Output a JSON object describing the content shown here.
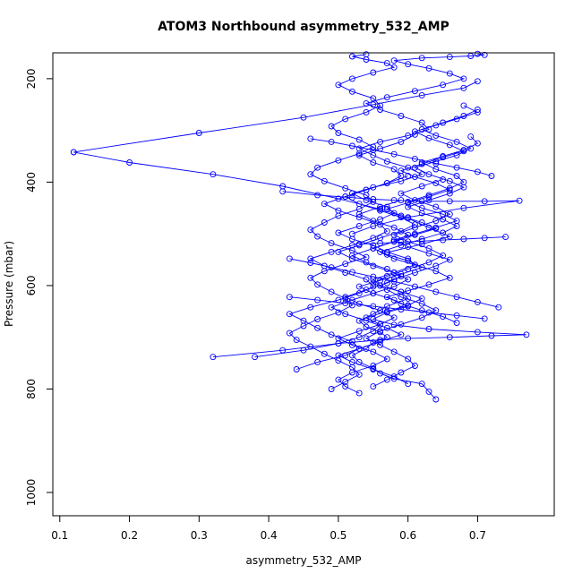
{
  "chart_data": {
    "type": "line",
    "title": "ATOM3 Northbound asymmetry_532_AMP",
    "xlabel": "asymmetry_532_AMP",
    "ylabel": "Pressure (mbar)",
    "xlim": [
      0.09,
      0.81
    ],
    "ylim": [
      1045,
      150
    ],
    "y_inverted": true,
    "grid": false,
    "legend": "none",
    "marker": "open-circle",
    "color": "#0000ff",
    "x_ticks": [
      0.1,
      0.2,
      0.3,
      0.4,
      0.5,
      0.6,
      0.7
    ],
    "x_tick_labels": [
      "0.1",
      "0.2",
      "0.3",
      "0.4",
      "0.5",
      "0.6",
      "0.7"
    ],
    "y_ticks": [
      200,
      400,
      600,
      800,
      1000
    ],
    "y_tick_labels": [
      "200",
      "400",
      "600",
      "800",
      "1000"
    ],
    "series": [
      {
        "x": [
          0.64,
          0.63,
          0.62,
          0.58,
          0.56,
          0.55,
          0.53,
          0.52,
          0.54,
          0.55,
          0.57,
          0.56,
          0.54,
          0.53,
          0.55,
          0.57,
          0.6,
          0.59,
          0.56,
          0.55,
          0.58,
          0.61,
          0.6,
          0.57,
          0.55,
          0.52,
          0.5,
          0.53,
          0.56,
          0.58,
          0.57,
          0.54,
          0.52,
          0.55,
          0.59,
          0.62,
          0.6,
          0.57,
          0.55,
          0.53,
          0.56,
          0.6,
          0.63,
          0.62,
          0.59,
          0.56,
          0.54,
          0.57,
          0.61,
          0.65,
          0.68,
          0.66,
          0.63,
          0.6,
          0.58,
          0.62,
          0.66,
          0.69,
          0.71,
          0.7
        ],
        "y": [
          820,
          805,
          790,
          780,
          770,
          760,
          748,
          735,
          722,
          710,
          700,
          690,
          680,
          668,
          655,
          640,
          625,
          612,
          600,
          588,
          575,
          560,
          548,
          535,
          522,
          510,
          498,
          485,
          472,
          460,
          448,
          435,
          422,
          410,
          398,
          385,
          372,
          360,
          348,
          335,
          322,
          310,
          298,
          285,
          272,
          260,
          248,
          236,
          224,
          212,
          200,
          190,
          180,
          172,
          165,
          160,
          158,
          156,
          154,
          152
        ]
      },
      {
        "x": [
          0.49,
          0.51,
          0.53,
          0.52,
          0.5,
          0.48,
          0.46,
          0.44,
          0.43,
          0.45,
          0.47,
          0.5,
          0.52,
          0.51,
          0.49,
          0.47,
          0.46,
          0.48,
          0.51,
          0.54,
          0.52,
          0.49,
          0.47,
          0.46,
          0.48,
          0.5,
          0.53,
          0.55,
          0.54,
          0.51,
          0.48,
          0.46,
          0.47,
          0.5,
          0.53,
          0.55,
          0.53,
          0.5,
          0.49,
          0.51,
          0.54,
          0.56,
          0.55,
          0.52,
          0.5,
          0.52,
          0.55,
          0.58,
          0.57,
          0.54,
          0.52,
          0.54
        ],
        "y": [
          800,
          786,
          772,
          758,
          745,
          732,
          718,
          705,
          692,
          678,
          665,
          652,
          638,
          625,
          612,
          598,
          585,
          572,
          558,
          545,
          532,
          518,
          505,
          492,
          478,
          465,
          452,
          438,
          425,
          412,
          398,
          385,
          372,
          358,
          345,
          332,
          318,
          305,
          292,
          278,
          265,
          252,
          238,
          225,
          212,
          200,
          188,
          178,
          170,
          163,
          157,
          153
        ]
      },
      {
        "x": [
          0.38,
          0.45,
          0.5,
          0.53,
          0.55,
          0.56,
          0.54,
          0.57,
          0.6,
          0.62,
          0.59,
          0.56,
          0.58,
          0.61,
          0.64,
          0.66,
          0.63,
          0.6,
          0.58,
          0.61,
          0.64,
          0.67,
          0.65,
          0.62,
          0.6,
          0.63,
          0.66,
          0.68,
          0.67,
          0.64,
          0.62,
          0.65,
          0.68,
          0.7,
          0.69
        ],
        "y": [
          738,
          725,
          712,
          700,
          688,
          675,
          662,
          650,
          638,
          625,
          612,
          600,
          588,
          575,
          562,
          550,
          538,
          525,
          512,
          500,
          488,
          475,
          462,
          450,
          438,
          425,
          412,
          400,
          388,
          375,
          362,
          350,
          338,
          325,
          312
        ]
      },
      {
        "x": [
          0.32,
          0.42,
          0.5,
          0.56,
          0.6,
          0.66,
          0.72,
          0.77,
          0.7,
          0.63,
          0.58,
          0.55,
          0.57,
          0.6,
          0.58,
          0.55,
          0.53,
          0.56,
          0.59,
          0.62,
          0.6,
          0.57,
          0.55,
          0.58,
          0.61,
          0.64,
          0.62,
          0.59,
          0.57,
          0.6,
          0.63,
          0.66,
          0.64,
          0.61,
          0.59,
          0.62,
          0.65,
          0.68,
          0.66,
          0.63,
          0.61,
          0.64,
          0.67,
          0.7,
          0.68
        ],
        "y": [
          738,
          725,
          712,
          705,
          702,
          700,
          697,
          695,
          690,
          684,
          676,
          665,
          652,
          640,
          628,
          615,
          602,
          590,
          578,
          565,
          552,
          540,
          528,
          515,
          502,
          490,
          478,
          465,
          452,
          440,
          428,
          415,
          402,
          390,
          378,
          365,
          352,
          340,
          328,
          315,
          302,
          290,
          278,
          265,
          252
        ]
      },
      {
        "x": [
          0.12,
          0.3,
          0.45,
          0.55,
          0.62,
          0.68,
          0.7
        ],
        "y": [
          342,
          305,
          275,
          250,
          232,
          218,
          205
        ]
      },
      {
        "x": [
          0.12,
          0.2,
          0.32,
          0.42,
          0.5,
          0.56,
          0.6,
          0.63,
          0.66,
          0.62,
          0.57
        ],
        "y": [
          342,
          362,
          385,
          408,
          432,
          452,
          470,
          488,
          505,
          520,
          536
        ]
      },
      {
        "x": [
          0.42,
          0.47,
          0.52,
          0.55,
          0.58,
          0.62,
          0.66,
          0.71,
          0.76,
          0.68,
          0.6,
          0.55,
          0.52
        ],
        "y": [
          418,
          425,
          430,
          433,
          435,
          437,
          437,
          437,
          436,
          450,
          468,
          485,
          500
        ]
      },
      {
        "x": [
          0.44,
          0.47,
          0.51,
          0.53,
          0.52,
          0.49,
          0.47,
          0.45,
          0.43,
          0.46,
          0.5,
          0.53,
          0.55,
          0.54,
          0.51,
          0.48,
          0.46,
          0.49,
          0.52,
          0.55,
          0.57,
          0.56,
          0.53,
          0.5,
          0.48,
          0.51,
          0.54,
          0.57,
          0.59,
          0.58,
          0.55,
          0.53,
          0.56,
          0.59,
          0.61
        ],
        "y": [
          762,
          748,
          735,
          722,
          708,
          695,
          682,
          668,
          655,
          642,
          628,
          615,
          602,
          588,
          575,
          562,
          548,
          535,
          522,
          508,
          495,
          482,
          468,
          455,
          442,
          428,
          415,
          402,
          388,
          375,
          362,
          348,
          335,
          322,
          308
        ]
      },
      {
        "x": [
          0.55,
          0.57,
          0.59,
          0.61,
          0.6,
          0.58,
          0.56,
          0.54,
          0.56,
          0.59,
          0.62,
          0.64,
          0.62,
          0.59,
          0.57,
          0.55,
          0.57,
          0.6,
          0.63,
          0.65,
          0.63,
          0.6,
          0.58,
          0.61,
          0.64,
          0.66,
          0.64,
          0.61,
          0.59,
          0.62,
          0.65
        ],
        "y": [
          795,
          782,
          768,
          755,
          742,
          728,
          715,
          702,
          688,
          675,
          662,
          648,
          635,
          622,
          608,
          595,
          582,
          568,
          555,
          542,
          528,
          515,
          502,
          488,
          475,
          462,
          448,
          435,
          422,
          408,
          395
        ]
      },
      {
        "x": [
          0.53,
          0.51,
          0.5,
          0.52,
          0.55,
          0.57,
          0.55,
          0.52,
          0.5,
          0.53,
          0.56,
          0.58,
          0.56,
          0.53,
          0.51,
          0.54,
          0.57,
          0.59,
          0.57,
          0.54,
          0.52,
          0.55,
          0.58,
          0.6,
          0.58,
          0.55,
          0.53,
          0.56,
          0.59
        ],
        "y": [
          808,
          795,
          782,
          768,
          755,
          742,
          728,
          715,
          702,
          688,
          675,
          662,
          648,
          635,
          622,
          608,
          595,
          582,
          568,
          555,
          542,
          528,
          515,
          502,
          488,
          475,
          462,
          448,
          435
        ]
      },
      {
        "x": [
          0.67,
          0.65,
          0.62,
          0.59,
          0.57,
          0.6,
          0.63,
          0.66,
          0.64,
          0.61,
          0.58,
          0.56,
          0.59,
          0.62,
          0.65,
          0.67,
          0.65,
          0.62,
          0.6,
          0.63,
          0.66,
          0.68,
          0.66,
          0.63,
          0.61,
          0.64,
          0.67,
          0.69,
          0.67,
          0.64,
          0.62,
          0.65,
          0.68,
          0.7
        ],
        "y": [
          672,
          660,
          648,
          635,
          622,
          610,
          598,
          585,
          572,
          560,
          548,
          535,
          522,
          510,
          498,
          485,
          472,
          460,
          448,
          435,
          422,
          410,
          398,
          385,
          372,
          360,
          348,
          335,
          322,
          310,
          298,
          285,
          272,
          260
        ]
      },
      {
        "x": [
          0.6,
          0.58,
          0.55,
          0.52,
          0.5,
          0.53,
          0.56,
          0.59,
          0.57,
          0.54,
          0.51,
          0.49,
          0.52,
          0.55,
          0.58,
          0.6,
          0.58,
          0.55,
          0.52,
          0.5,
          0.53,
          0.56,
          0.59,
          0.61,
          0.59,
          0.56,
          0.53,
          0.51,
          0.54,
          0.57,
          0.6
        ],
        "y": [
          790,
          776,
          762,
          748,
          735,
          722,
          708,
          695,
          682,
          668,
          655,
          642,
          628,
          615,
          602,
          588,
          575,
          562,
          548,
          535,
          522,
          508,
          495,
          482,
          468,
          455,
          442,
          428,
          415,
          402,
          388
        ]
      },
      {
        "x": [
          0.46,
          0.49,
          0.52,
          0.55,
          0.58,
          0.61,
          0.64,
          0.67,
          0.7,
          0.72
        ],
        "y": [
          316,
          322,
          330,
          338,
          346,
          355,
          364,
          372,
          380,
          388
        ]
      },
      {
        "x": [
          0.43,
          0.46,
          0.49,
          0.52,
          0.55,
          0.58,
          0.61,
          0.64,
          0.67,
          0.7,
          0.73
        ],
        "y": [
          548,
          556,
          565,
          574,
          583,
          592,
          602,
          612,
          622,
          632,
          642
        ]
      },
      {
        "x": [
          0.43,
          0.47,
          0.51,
          0.55,
          0.59,
          0.63,
          0.67,
          0.71
        ],
        "y": [
          622,
          628,
          634,
          640,
          646,
          652,
          658,
          664
        ]
      },
      {
        "x": [
          0.53,
          0.56,
          0.59,
          0.62,
          0.65,
          0.68,
          0.71,
          0.74
        ],
        "y": [
          520,
          518,
          516,
          514,
          512,
          510,
          508,
          506
        ]
      }
    ]
  }
}
